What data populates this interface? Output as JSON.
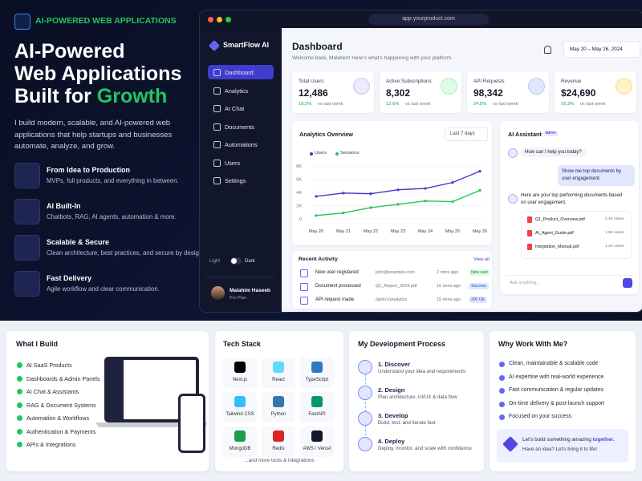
{
  "hero": {
    "badge": "AI-POWERED WEB APPLICATIONS",
    "title_lines": [
      "AI-Powered",
      "Web Applications",
      "Built for "
    ],
    "title_highlight": "Growth",
    "description": "I build modern, scalable, and AI-powered web applications that help startups and businesses automate, analyze, and grow.",
    "features": [
      {
        "title": "From Idea to Production",
        "text": "MVPs, full products, and everything in between."
      },
      {
        "title": "AI Built-In",
        "text": "Chatbots, RAG, AI agents, automation & more."
      },
      {
        "title": "Scalable & Secure",
        "text": "Clean architecture, best practices, and secure by design."
      },
      {
        "title": "Fast Delivery",
        "text": "Agile workflow and clear communication."
      }
    ]
  },
  "dashboard": {
    "url": "app.yourproduct.com",
    "brand": "SmartFlow AI",
    "nav": [
      "Dashboard",
      "Analytics",
      "AI Chat",
      "Documents",
      "Automations",
      "Users",
      "Settings"
    ],
    "theme": [
      "Light",
      "Dark"
    ],
    "user": {
      "name": "Malahim Haseeb",
      "plan": "Pro Plan"
    },
    "title": "Dashboard",
    "subtitle": "Welcome back, Malahim! Here's what's happening with your platform.",
    "date_range": "May 20 – May 26, 2024",
    "stats": [
      {
        "label": "Total Users",
        "value": "12,486",
        "change": "18.2%",
        "note": "vs last week"
      },
      {
        "label": "Active Subscriptions",
        "value": "8,302",
        "change": "12.6%",
        "note": "vs last week"
      },
      {
        "label": "API Requests",
        "value": "98,342",
        "change": "24.5%",
        "note": "vs last week"
      },
      {
        "label": "Revenue",
        "value": "$24,690",
        "change": "16.3%",
        "note": "vs last week"
      }
    ],
    "analytics": {
      "type": "line",
      "title": "Analytics Overview",
      "range": "Last 7 days",
      "categories": [
        "May 20",
        "May 21",
        "May 22",
        "May 23",
        "May 24",
        "May 25",
        "May 26"
      ],
      "series": [
        {
          "name": "Users",
          "color": "#4338ca",
          "values": [
            3400,
            3900,
            3800,
            4400,
            4600,
            5500,
            7200
          ]
        },
        {
          "name": "Sessions",
          "color": "#22c55e",
          "values": [
            500,
            900,
            1700,
            2200,
            2700,
            2600,
            4300
          ]
        }
      ],
      "ylim": [
        0,
        8000
      ],
      "yticks": [
        0,
        {
          "value": 2000,
          "label": "2K"
        },
        {
          "value": 4000,
          "label": "4K"
        },
        {
          "value": 6000,
          "label": "6K"
        },
        {
          "value": 8000,
          "label": "8K"
        }
      ]
    },
    "activity": {
      "title": "Recent Activity",
      "link": "View all",
      "rows": [
        {
          "event": "New user registered",
          "detail": "john@example.com",
          "time": "2 mins ago",
          "status": "New user"
        },
        {
          "event": "Document processed",
          "detail": "Q1_Report_2024.pdf",
          "time": "10 mins ago",
          "status": "Success"
        },
        {
          "event": "API request made",
          "detail": "/api/v1/analytics",
          "time": "15 mins ago",
          "status": "200 OK"
        }
      ]
    },
    "assistant": {
      "title": "AI Assistant",
      "badge": "BETA",
      "greeting": "How can I help you today?",
      "user_message": "Show me top documents by user engagement.",
      "reply": "Here are your top performing documents based on user engagement.",
      "documents": [
        {
          "name": "Q1_Product_Overview.pdf",
          "views": "2.4K views"
        },
        {
          "name": "AI_Agent_Guide.pdf",
          "views": "1.8K views"
        },
        {
          "name": "Integration_Manual.pdf",
          "views": "1.2K views"
        }
      ],
      "placeholder": "Ask anything..."
    }
  },
  "build": {
    "title": "What I Build",
    "items": [
      "AI SaaS Products",
      "Dashboards & Admin Panels",
      "AI Chat & Assistants",
      "RAG & Document Systems",
      "Automation & Workflows",
      "Authentication & Payments",
      "APIs & Integrations"
    ]
  },
  "tech": {
    "title": "Tech Stack",
    "items": [
      "Next.js",
      "React",
      "TypeScript",
      "Tailwind CSS",
      "Python",
      "FastAPI",
      "MongoDB",
      "Redis",
      "AWS / Vercel"
    ],
    "footer": "...and more tools & integrations"
  },
  "process": {
    "title": "My Development Process",
    "steps": [
      {
        "title": "1. Discover",
        "text": "Understand your idea and requirements"
      },
      {
        "title": "2. Design",
        "text": "Plan architecture, UI/UX & data flow"
      },
      {
        "title": "3. Develop",
        "text": "Build, test, and iterate fast"
      },
      {
        "title": "4. Deploy",
        "text": "Deploy, monitor, and scale with confidence"
      }
    ]
  },
  "why": {
    "title": "Why Work With Me?",
    "items": [
      "Clean, maintainable & scalable code",
      "AI expertise with real-world experience",
      "Fast communication & regular updates",
      "On-time delivery & post-launch support",
      "Focused on your success"
    ],
    "cta": "Let's build something amazing ",
    "cta_highlight": "together.",
    "cta_sub": "Have an idea? Let's bring it to life!"
  }
}
